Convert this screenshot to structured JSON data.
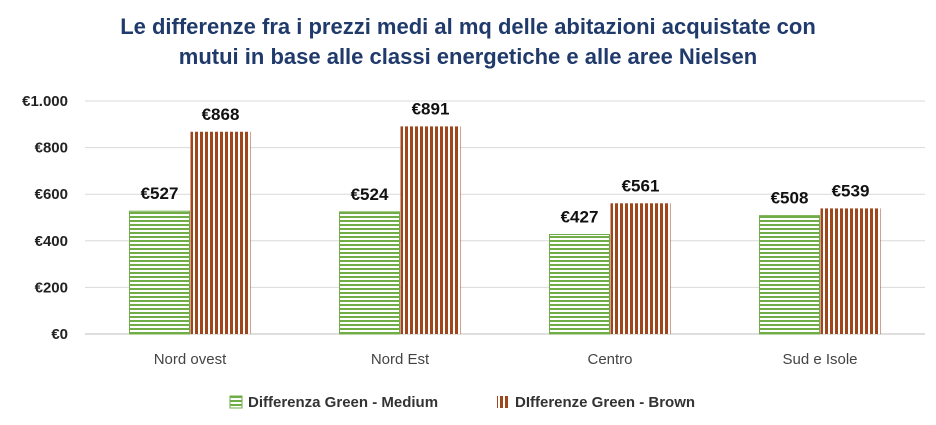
{
  "chart_data": {
    "type": "bar",
    "title_lines": [
      "Le differenze fra i prezzi medi al mq delle abitazioni acquistate con",
      "mutui in base alle classi energetiche e alle aree Nielsen"
    ],
    "categories": [
      "Nord ovest",
      "Nord Est",
      "Centro",
      "Sud e Isole"
    ],
    "series": [
      {
        "name": "Differenza Green - Medium",
        "values": [
          527,
          524,
          427,
          508
        ],
        "labels": [
          "€527",
          "€524",
          "€427",
          "€508"
        ],
        "color": "#70AD47",
        "pattern": "horizontal-stripes"
      },
      {
        "name": "DIfferenze Green - Brown",
        "values": [
          868,
          891,
          561,
          539
        ],
        "labels": [
          "€868",
          "€891",
          "€561",
          "€539"
        ],
        "color": "#A0461C",
        "pattern": "vertical-stripes"
      }
    ],
    "yticks": [
      {
        "value": 0,
        "label": "€0"
      },
      {
        "value": 200,
        "label": "€200"
      },
      {
        "value": 400,
        "label": "€400"
      },
      {
        "value": 600,
        "label": "€600"
      },
      {
        "value": 800,
        "label": "€800"
      },
      {
        "value": 1000,
        "label": "€1.000"
      }
    ],
    "ylim": [
      0,
      1000
    ],
    "grid": true,
    "legend_position": "bottom"
  },
  "colors": {
    "title": "#1F3A6B",
    "grid": "#D9D9D9",
    "axis": "#BFBFBF"
  }
}
